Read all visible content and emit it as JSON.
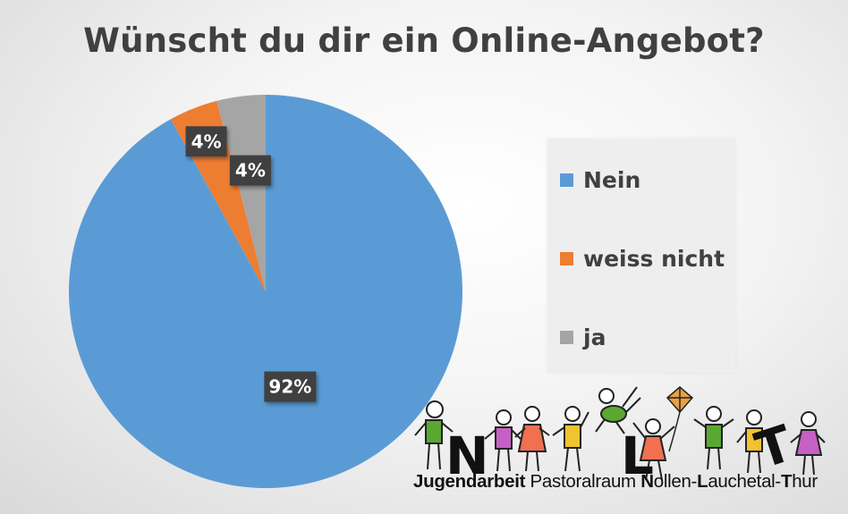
{
  "chart_data": {
    "type": "pie",
    "title": "Wünscht du dir ein Online-Angebot?",
    "slices": [
      {
        "label": "Nein",
        "value": 92,
        "display": "92%",
        "color": "#5b9bd5"
      },
      {
        "label": "weiss nicht",
        "value": 4,
        "display": "4%",
        "color": "#ed7d31"
      },
      {
        "label": "ja",
        "value": 4,
        "display": "4%",
        "color": "#a5a5a5"
      }
    ],
    "legend_position": "right"
  },
  "logo": {
    "letters": [
      "N",
      "L",
      "T"
    ],
    "caption_parts": [
      {
        "text": "Jugendarbeit",
        "bold": true
      },
      {
        "text": " Pastoralraum ",
        "bold": false
      },
      {
        "text": "N",
        "bold": true
      },
      {
        "text": "ollen-",
        "bold": false
      },
      {
        "text": "L",
        "bold": true
      },
      {
        "text": "auchetal-",
        "bold": false
      },
      {
        "text": "T",
        "bold": true
      },
      {
        "text": "hur",
        "bold": false
      }
    ]
  }
}
